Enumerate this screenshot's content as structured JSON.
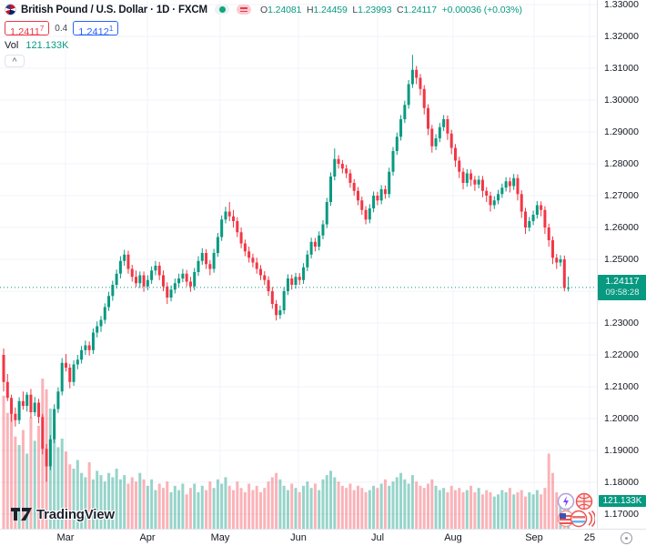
{
  "header": {
    "title": "British Pound / U.S. Dollar · 1D · FXCM",
    "ohlc": {
      "o_label": "O",
      "o_value": "1.24081",
      "h_label": "H",
      "h_value": "1.24459",
      "l_label": "L",
      "l_value": "1.23993",
      "c_label": "C",
      "c_value": "1.24117",
      "change": "+0.00036 (+0.03%)"
    },
    "bid": {
      "main": "1.2411",
      "sup": "7"
    },
    "spread": "0.4",
    "ask": {
      "main": "1.2412",
      "sup": "1"
    },
    "volume": {
      "label": "Vol",
      "value": "121.133K"
    }
  },
  "price_axis": {
    "labels": [
      "1.33000",
      "1.32000",
      "1.31000",
      "1.30000",
      "1.29000",
      "1.28000",
      "1.27000",
      "1.26000",
      "1.25000",
      "1.23000",
      "1.22000",
      "1.21000",
      "1.20000",
      "1.19000",
      "1.18000",
      "1.17000"
    ],
    "last_price": "1.24117",
    "countdown": "09:58:28",
    "volume_tag": "121.133K"
  },
  "time_axis": {
    "labels": [
      "Mar",
      "Apr",
      "May",
      "Jun",
      "Jul",
      "Aug",
      "Sep",
      "25"
    ]
  },
  "watermark": {
    "text": "TradingView"
  },
  "colors": {
    "up": "#089981",
    "down": "#f23645",
    "up_vol": "rgba(8,153,129,0.42)",
    "down_vol": "rgba(242,54,69,0.38)",
    "accent_blue": "#2962ff",
    "text": "#131722",
    "muted": "#787b86",
    "grid": "#f0f3fa",
    "axis_border": "#e0e3eb"
  },
  "chart_data": {
    "type": "candlestick",
    "title": "British Pound / U.S. Dollar",
    "interval": "1D",
    "exchange": "FXCM",
    "price_range": [
      1.17,
      1.33
    ],
    "y_grid_step": 0.01,
    "last_price": 1.24117,
    "last_volume_k": 121.133,
    "x_labels": [
      "Mar",
      "Apr",
      "May",
      "Jun",
      "Jul",
      "Aug",
      "Sep",
      "25"
    ],
    "candles": [
      [
        1.22,
        1.222,
        1.2085,
        1.2115
      ],
      [
        1.2115,
        1.214,
        1.2055,
        1.2065
      ],
      [
        1.2065,
        1.2075,
        1.199,
        1.2015
      ],
      [
        1.2015,
        1.2035,
        1.1975,
        1.1995
      ],
      [
        1.1995,
        1.2067,
        1.1983,
        1.2055
      ],
      [
        1.2055,
        1.2085,
        1.2028,
        1.204
      ],
      [
        1.204,
        1.2083,
        1.2022,
        1.2075
      ],
      [
        1.2075,
        1.2093,
        1.2002,
        1.202
      ],
      [
        1.202,
        1.2068,
        1.2008,
        1.205
      ],
      [
        1.205,
        1.2062,
        1.1985,
        1.2005
      ],
      [
        1.2005,
        1.2015,
        1.1888,
        1.1905
      ],
      [
        1.1905,
        1.192,
        1.1802,
        1.185
      ],
      [
        1.185,
        1.1948,
        1.1838,
        1.1935
      ],
      [
        1.1935,
        1.2045,
        1.1923,
        1.203
      ],
      [
        1.203,
        1.2098,
        1.2018,
        1.2085
      ],
      [
        1.2085,
        1.219,
        1.2073,
        1.2175
      ],
      [
        1.2175,
        1.2203,
        1.2148,
        1.216
      ],
      [
        1.216,
        1.2172,
        1.2095,
        1.2115
      ],
      [
        1.2115,
        1.2183,
        1.2103,
        1.217
      ],
      [
        1.217,
        1.22,
        1.2155,
        1.2185
      ],
      [
        1.2185,
        1.2228,
        1.2173,
        1.2215
      ],
      [
        1.2215,
        1.2245,
        1.22,
        1.223
      ],
      [
        1.223,
        1.2242,
        1.2198,
        1.2215
      ],
      [
        1.2215,
        1.2283,
        1.2203,
        1.227
      ],
      [
        1.227,
        1.2305,
        1.2255,
        1.229
      ],
      [
        1.229,
        1.2322,
        1.2272,
        1.231
      ],
      [
        1.231,
        1.2362,
        1.2298,
        1.235
      ],
      [
        1.235,
        1.2398,
        1.2338,
        1.2385
      ],
      [
        1.2385,
        1.2433,
        1.237,
        1.242
      ],
      [
        1.242,
        1.2468,
        1.2408,
        1.2455
      ],
      [
        1.2455,
        1.251,
        1.244,
        1.2495
      ],
      [
        1.2495,
        1.253,
        1.248,
        1.2515
      ],
      [
        1.2515,
        1.2527,
        1.2455,
        1.247
      ],
      [
        1.247,
        1.2483,
        1.243,
        1.2445
      ],
      [
        1.2445,
        1.2465,
        1.2413,
        1.2425
      ],
      [
        1.2425,
        1.2462,
        1.241,
        1.245
      ],
      [
        1.245,
        1.2462,
        1.2398,
        1.2415
      ],
      [
        1.2415,
        1.245,
        1.2403,
        1.2435
      ],
      [
        1.2435,
        1.2478,
        1.2423,
        1.2465
      ],
      [
        1.2465,
        1.2495,
        1.245,
        1.248
      ],
      [
        1.248,
        1.2492,
        1.2435,
        1.245
      ],
      [
        1.245,
        1.2465,
        1.24,
        1.2415
      ],
      [
        1.2415,
        1.2428,
        1.236,
        1.238
      ],
      [
        1.238,
        1.2418,
        1.2368,
        1.2405
      ],
      [
        1.2405,
        1.244,
        1.2393,
        1.2425
      ],
      [
        1.2425,
        1.2455,
        1.2413,
        1.244
      ],
      [
        1.244,
        1.247,
        1.2428,
        1.2455
      ],
      [
        1.2455,
        1.2467,
        1.2415,
        1.243
      ],
      [
        1.243,
        1.2445,
        1.2398,
        1.2415
      ],
      [
        1.2415,
        1.2473,
        1.2403,
        1.246
      ],
      [
        1.246,
        1.251,
        1.2448,
        1.2495
      ],
      [
        1.2495,
        1.2535,
        1.2483,
        1.252
      ],
      [
        1.252,
        1.2532,
        1.247,
        1.2485
      ],
      [
        1.2485,
        1.2497,
        1.245,
        1.247
      ],
      [
        1.247,
        1.2533,
        1.2458,
        1.252
      ],
      [
        1.252,
        1.2583,
        1.2508,
        1.257
      ],
      [
        1.257,
        1.2638,
        1.2558,
        1.2625
      ],
      [
        1.2625,
        1.2665,
        1.2613,
        1.265
      ],
      [
        1.265,
        1.268,
        1.262,
        1.2635
      ],
      [
        1.2635,
        1.2655,
        1.26,
        1.262
      ],
      [
        1.262,
        1.2632,
        1.257,
        1.2585
      ],
      [
        1.2585,
        1.26,
        1.2535,
        1.255
      ],
      [
        1.255,
        1.2562,
        1.251,
        1.2525
      ],
      [
        1.2525,
        1.254,
        1.249,
        1.2505
      ],
      [
        1.2505,
        1.2518,
        1.2475,
        1.249
      ],
      [
        1.249,
        1.2505,
        1.2455,
        1.247
      ],
      [
        1.247,
        1.2482,
        1.2435,
        1.245
      ],
      [
        1.245,
        1.2463,
        1.242,
        1.2435
      ],
      [
        1.2435,
        1.2447,
        1.2385,
        1.24
      ],
      [
        1.24,
        1.2413,
        1.2345,
        1.236
      ],
      [
        1.236,
        1.2372,
        1.2308,
        1.2325
      ],
      [
        1.2325,
        1.2355,
        1.2313,
        1.234
      ],
      [
        1.234,
        1.2413,
        1.2328,
        1.24
      ],
      [
        1.24,
        1.2453,
        1.2388,
        1.244
      ],
      [
        1.244,
        1.2452,
        1.2405,
        1.242
      ],
      [
        1.242,
        1.2458,
        1.2408,
        1.2445
      ],
      [
        1.2445,
        1.2457,
        1.242,
        1.2435
      ],
      [
        1.2435,
        1.2488,
        1.2423,
        1.2475
      ],
      [
        1.2475,
        1.2528,
        1.2463,
        1.2515
      ],
      [
        1.2515,
        1.2568,
        1.2503,
        1.2555
      ],
      [
        1.2555,
        1.2567,
        1.2525,
        1.254
      ],
      [
        1.254,
        1.2588,
        1.2528,
        1.2575
      ],
      [
        1.2575,
        1.2623,
        1.2563,
        1.261
      ],
      [
        1.261,
        1.2693,
        1.2598,
        1.268
      ],
      [
        1.268,
        1.2773,
        1.2668,
        1.276
      ],
      [
        1.276,
        1.2848,
        1.2748,
        1.2815
      ],
      [
        1.2815,
        1.2827,
        1.2785,
        1.28
      ],
      [
        1.28,
        1.2812,
        1.277,
        1.2785
      ],
      [
        1.2785,
        1.2797,
        1.2755,
        1.277
      ],
      [
        1.277,
        1.2782,
        1.2725,
        1.274
      ],
      [
        1.274,
        1.2752,
        1.27,
        1.2715
      ],
      [
        1.2715,
        1.2727,
        1.267,
        1.2685
      ],
      [
        1.2685,
        1.2697,
        1.264,
        1.2655
      ],
      [
        1.2655,
        1.2667,
        1.261,
        1.2625
      ],
      [
        1.2625,
        1.2673,
        1.2613,
        1.266
      ],
      [
        1.266,
        1.2713,
        1.2648,
        1.27
      ],
      [
        1.27,
        1.2712,
        1.267,
        1.2685
      ],
      [
        1.2685,
        1.2733,
        1.2673,
        1.272
      ],
      [
        1.272,
        1.2732,
        1.269,
        1.2705
      ],
      [
        1.2705,
        1.2788,
        1.2693,
        1.2775
      ],
      [
        1.2775,
        1.2853,
        1.2763,
        1.284
      ],
      [
        1.284,
        1.2898,
        1.2828,
        1.2885
      ],
      [
        1.2885,
        1.2953,
        1.2873,
        1.294
      ],
      [
        1.294,
        1.2998,
        1.2928,
        1.2985
      ],
      [
        1.2985,
        1.3063,
        1.2973,
        1.305
      ],
      [
        1.305,
        1.3142,
        1.3038,
        1.3095
      ],
      [
        1.3095,
        1.3107,
        1.305,
        1.307
      ],
      [
        1.307,
        1.3082,
        1.3015,
        1.3035
      ],
      [
        1.3035,
        1.3047,
        1.2955,
        1.2975
      ],
      [
        1.2975,
        1.2987,
        1.289,
        1.291
      ],
      [
        1.291,
        1.2922,
        1.2835,
        1.2855
      ],
      [
        1.2855,
        1.2893,
        1.2843,
        1.288
      ],
      [
        1.288,
        1.2928,
        1.2868,
        1.2915
      ],
      [
        1.2915,
        1.2953,
        1.2903,
        1.294
      ],
      [
        1.294,
        1.2952,
        1.2875,
        1.2895
      ],
      [
        1.2895,
        1.2907,
        1.283,
        1.285
      ],
      [
        1.285,
        1.2862,
        1.279,
        1.281
      ],
      [
        1.281,
        1.2822,
        1.2755,
        1.2775
      ],
      [
        1.2775,
        1.2787,
        1.272,
        1.274
      ],
      [
        1.274,
        1.2783,
        1.2728,
        1.277
      ],
      [
        1.277,
        1.2782,
        1.273,
        1.275
      ],
      [
        1.275,
        1.2762,
        1.2715,
        1.2735
      ],
      [
        1.2735,
        1.2763,
        1.2723,
        1.275
      ],
      [
        1.275,
        1.2762,
        1.2695,
        1.2715
      ],
      [
        1.2715,
        1.2727,
        1.268,
        1.27
      ],
      [
        1.27,
        1.2712,
        1.265,
        1.267
      ],
      [
        1.267,
        1.2698,
        1.2658,
        1.2685
      ],
      [
        1.2685,
        1.2718,
        1.2673,
        1.2705
      ],
      [
        1.2705,
        1.2738,
        1.2693,
        1.2725
      ],
      [
        1.2725,
        1.2758,
        1.2713,
        1.2745
      ],
      [
        1.2745,
        1.2757,
        1.271,
        1.273
      ],
      [
        1.273,
        1.2768,
        1.2718,
        1.2755
      ],
      [
        1.2755,
        1.2767,
        1.2685,
        1.2705
      ],
      [
        1.2705,
        1.2717,
        1.263,
        1.265
      ],
      [
        1.265,
        1.2662,
        1.258,
        1.26
      ],
      [
        1.26,
        1.2633,
        1.2588,
        1.262
      ],
      [
        1.262,
        1.2653,
        1.2608,
        1.264
      ],
      [
        1.264,
        1.2683,
        1.2628,
        1.267
      ],
      [
        1.267,
        1.2682,
        1.2635,
        1.2655
      ],
      [
        1.2655,
        1.2667,
        1.258,
        1.26
      ],
      [
        1.26,
        1.2612,
        1.254,
        1.256
      ],
      [
        1.256,
        1.2572,
        1.2485,
        1.2505
      ],
      [
        1.2505,
        1.2517,
        1.247,
        1.249
      ],
      [
        1.249,
        1.2513,
        1.2478,
        1.25
      ],
      [
        1.25,
        1.2512,
        1.24,
        1.241
      ],
      [
        1.24081,
        1.24459,
        1.23993,
        1.24117
      ]
    ],
    "volumes_k": [
      620,
      540,
      580,
      430,
      390,
      460,
      350,
      520,
      410,
      480,
      700,
      650,
      560,
      490,
      380,
      420,
      360,
      300,
      280,
      320,
      260,
      240,
      310,
      230,
      270,
      250,
      220,
      260,
      240,
      280,
      230,
      250,
      210,
      240,
      220,
      260,
      230,
      200,
      230,
      180,
      210,
      190,
      220,
      170,
      200,
      180,
      210,
      160,
      190,
      210,
      170,
      200,
      180,
      220,
      190,
      230,
      210,
      240,
      200,
      180,
      220,
      190,
      170,
      210,
      180,
      200,
      170,
      190,
      220,
      240,
      260,
      230,
      200,
      180,
      210,
      190,
      170,
      200,
      220,
      190,
      210,
      180,
      230,
      250,
      270,
      240,
      220,
      200,
      190,
      210,
      180,
      200,
      190,
      170,
      180,
      200,
      190,
      210,
      230,
      200,
      220,
      240,
      260,
      230,
      210,
      250,
      220,
      200,
      190,
      210,
      230,
      200,
      180,
      190,
      170,
      200,
      180,
      190,
      170,
      180,
      200,
      170,
      190,
      160,
      180,
      170,
      150,
      160,
      180,
      170,
      190,
      160,
      170,
      180,
      150,
      170,
      160,
      180,
      160,
      190,
      350,
      260,
      170,
      150,
      140,
      121.133
    ]
  }
}
